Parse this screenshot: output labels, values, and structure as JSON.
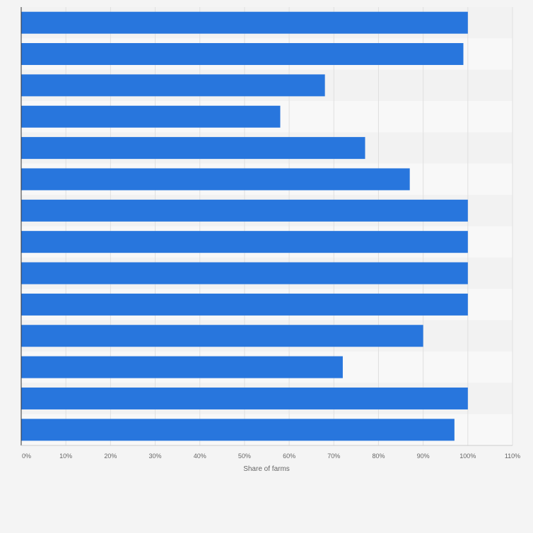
{
  "chart_data": {
    "type": "bar",
    "orientation": "horizontal",
    "categories": [
      "",
      "",
      "",
      "",
      "",
      "",
      "",
      "",
      "",
      "",
      "",
      "",
      "",
      ""
    ],
    "values": [
      100,
      99,
      68,
      58,
      77,
      87,
      100,
      100,
      100,
      100,
      90,
      72,
      100,
      97
    ],
    "title": "",
    "xlabel": "Share of farms",
    "ylabel": "",
    "xlim": [
      0,
      110
    ],
    "x_ticks": [
      "0%",
      "10%",
      "20%",
      "30%",
      "40%",
      "50%",
      "60%",
      "70%",
      "80%",
      "90%",
      "100%",
      "110%"
    ],
    "grid": true,
    "legend": "none",
    "colors": {
      "bar": "#2876dd",
      "background": "#f4f4f4",
      "plot_band_dark": "#f2f2f2",
      "plot_band_light": "#f8f8f8",
      "gridline": "#e0e0e0",
      "axis": "#333333",
      "tick_label": "#666666"
    }
  }
}
